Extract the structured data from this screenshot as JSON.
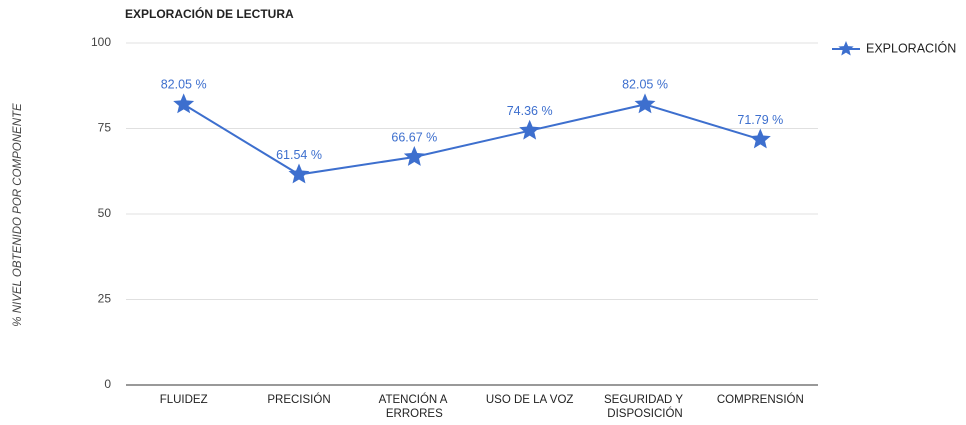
{
  "chart_data": {
    "type": "line",
    "title": "EXPLORACIÓN DE LECTURA",
    "y_axis_label": "% NIVEL OBTENIDO POR COMPONENTE",
    "categories": [
      "FLUIDEZ",
      "PRECISIÓN",
      "ATENCIÓN A ERRORES",
      "USO DE LA VOZ",
      "SEGURIDAD Y DISPOSICIÓN",
      "COMPRENSIÓN"
    ],
    "series": [
      {
        "name": "EXPLORACIÓN",
        "color": "#3d6fce",
        "values": [
          82.05,
          61.54,
          66.67,
          74.36,
          82.05,
          71.79
        ],
        "value_labels": [
          "82.05 %",
          "61.54 %",
          "66.67 %",
          "74.36 %",
          "82.05 %",
          "71.79 %"
        ]
      }
    ],
    "ylim": [
      0,
      100
    ],
    "yticks": [
      0,
      25,
      50,
      75,
      100
    ],
    "grid": true,
    "legend": "right",
    "marker": "star"
  }
}
